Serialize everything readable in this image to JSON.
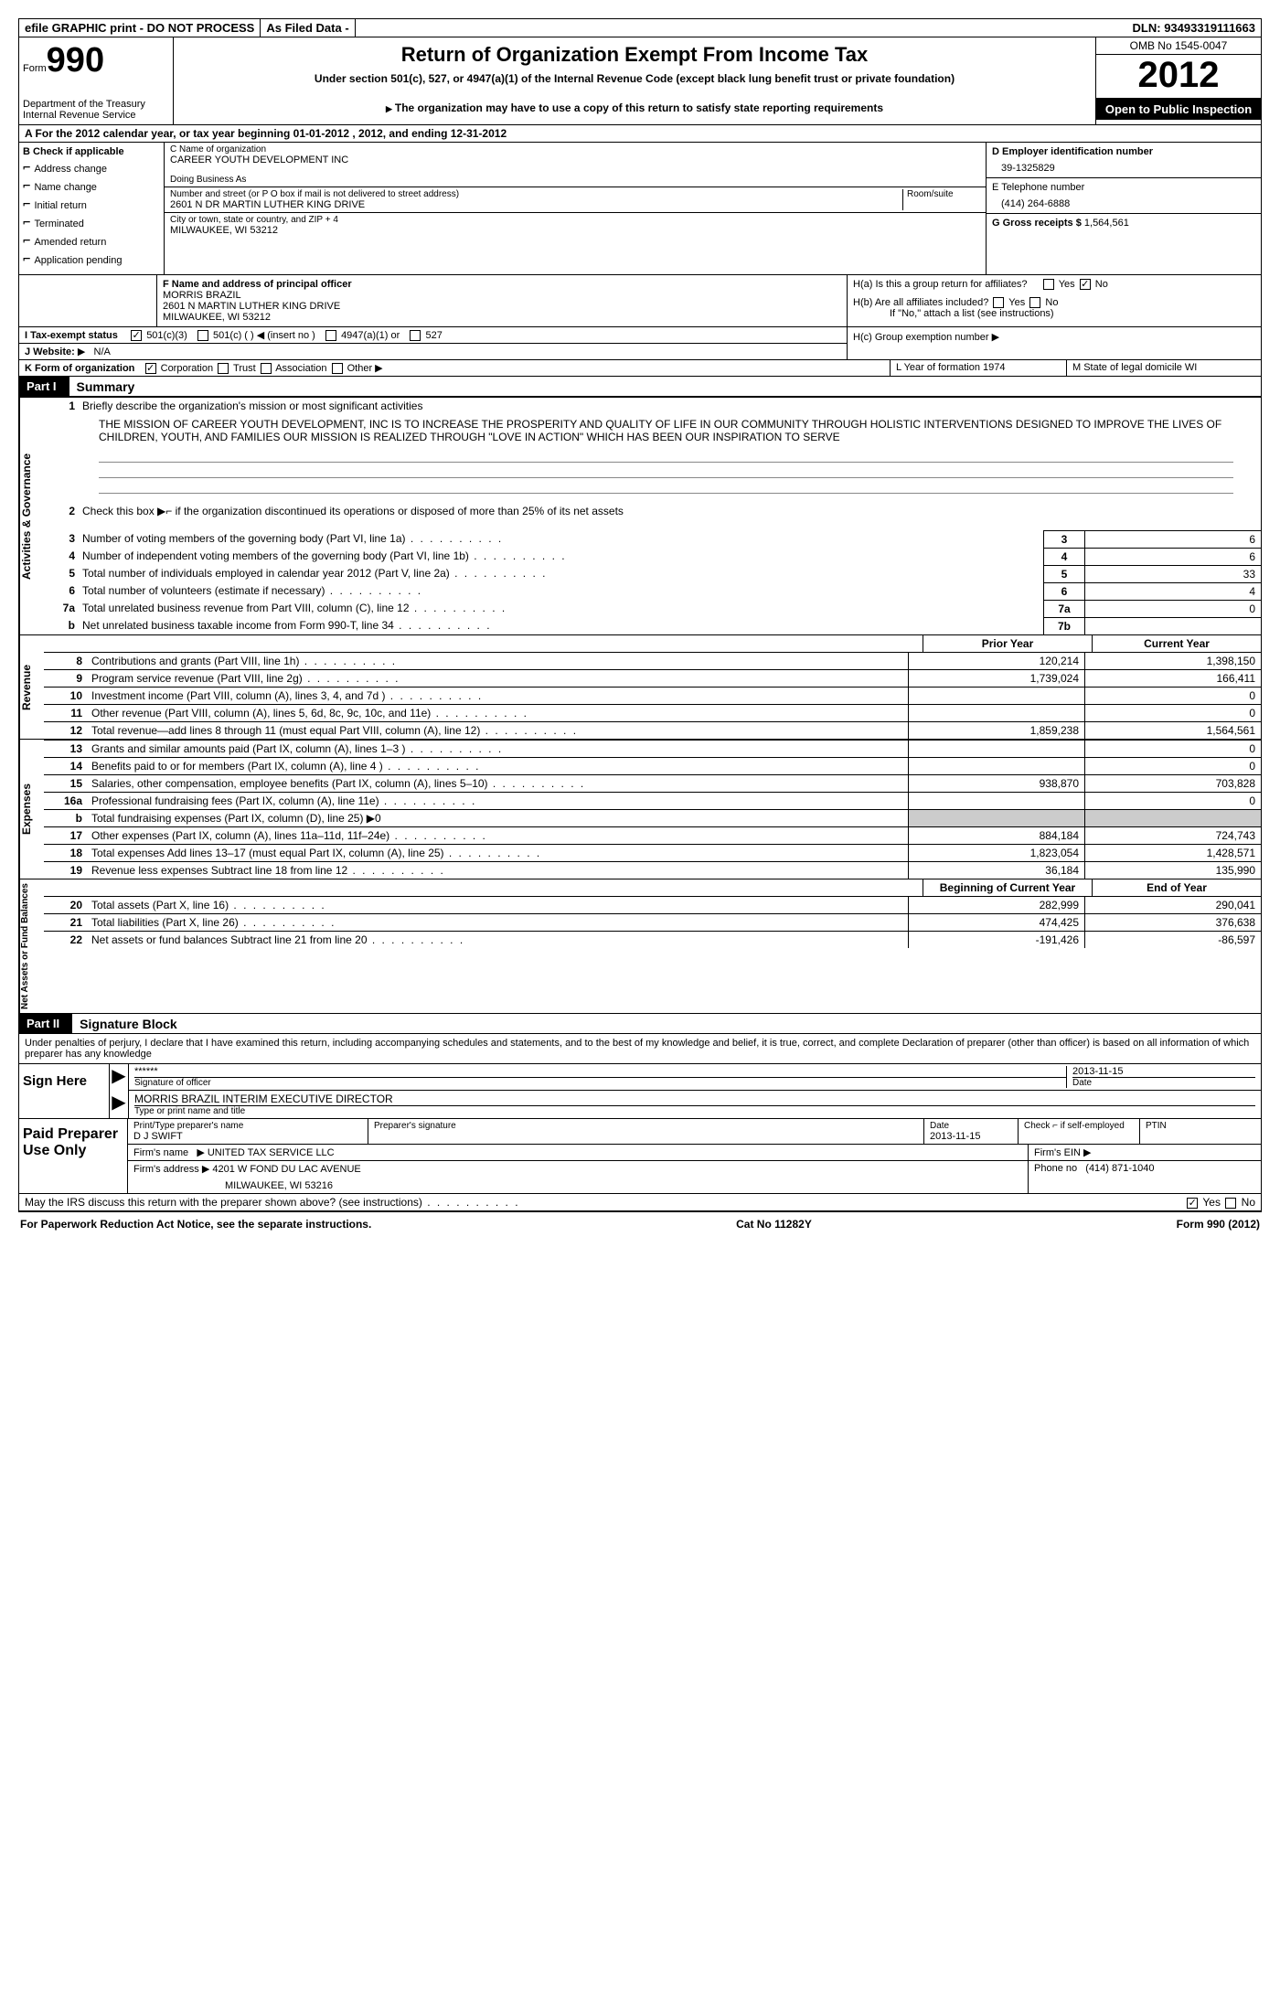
{
  "top": {
    "efile": "efile GRAPHIC print - DO NOT PROCESS",
    "filed": "As Filed Data -",
    "dln_label": "DLN:",
    "dln": "93493319111663"
  },
  "header": {
    "form_label": "Form",
    "form_num": "990",
    "dept1": "Department of the Treasury",
    "dept2": "Internal Revenue Service",
    "title": "Return of Organization Exempt From Income Tax",
    "sub": "Under section 501(c), 527, or 4947(a)(1) of the Internal Revenue Code (except black lung benefit trust or private foundation)",
    "note": "The organization may have to use a copy of this return to satisfy state reporting requirements",
    "omb": "OMB No  1545-0047",
    "year": "2012",
    "open": "Open to Public Inspection"
  },
  "section_a": "A  For the 2012 calendar year, or tax year beginning 01-01-2012     , 2012, and ending 12-31-2012",
  "b_label": "B  Check if applicable",
  "b_items": [
    "Address change",
    "Name change",
    "Initial return",
    "Terminated",
    "Amended return",
    "Application pending"
  ],
  "c": {
    "name_label": "C Name of organization",
    "name": "CAREER YOUTH DEVELOPMENT INC",
    "dba_label": "Doing Business As",
    "dba": "",
    "addr_label": "Number and street (or P O  box if mail is not delivered to street address)",
    "room_label": "Room/suite",
    "addr": "2601 N DR MARTIN LUTHER KING DRIVE",
    "city_label": "City or town, state or country, and ZIP + 4",
    "city": "MILWAUKEE, WI  53212"
  },
  "d": {
    "ein_label": "D Employer identification number",
    "ein": "39-1325829",
    "tel_label": "E Telephone number",
    "tel": "(414) 264-6888",
    "gross_label": "G Gross receipts $",
    "gross": "1,564,561"
  },
  "f": {
    "label": "F  Name and address of principal officer",
    "name": "MORRIS BRAZIL",
    "addr1": "2601 N MARTIN LUTHER KING DRIVE",
    "addr2": "MILWAUKEE, WI  53212"
  },
  "h": {
    "a": "H(a)  Is this a group return for affiliates?",
    "b": "H(b)  Are all affiliates included?",
    "b_note": "If \"No,\" attach a list  (see instructions)",
    "c": "H(c)  Group exemption number"
  },
  "i": "I  Tax-exempt status",
  "i_opts": [
    "501(c)(3)",
    "501(c) (  )",
    "(insert no )",
    "4947(a)(1) or",
    "527"
  ],
  "j": "J  Website:",
  "j_val": "N/A",
  "k": {
    "label": "K Form of organization",
    "opts": [
      "Corporation",
      "Trust",
      "Association",
      "Other"
    ],
    "l": "L Year of formation  1974",
    "m": "M State of legal domicile  WI"
  },
  "part1": {
    "label": "Part I",
    "title": "Summary"
  },
  "governance": {
    "side": "Activities & Governance",
    "l1": "Briefly describe the organization's mission or most significant activities",
    "mission": "THE MISSION OF CAREER YOUTH DEVELOPMENT, INC  IS TO INCREASE THE PROSPERITY AND QUALITY OF LIFE IN OUR COMMUNITY THROUGH HOLISTIC INTERVENTIONS DESIGNED TO IMPROVE THE LIVES OF CHILDREN, YOUTH, AND FAMILIES  OUR MISSION IS REALIZED THROUGH \"LOVE IN ACTION\" WHICH HAS BEEN OUR INSPIRATION TO SERVE",
    "l2": "Check this box ▶⌐  if the organization discontinued its operations or disposed of more than 25% of its net assets",
    "l3": {
      "t": "Number of voting members of the governing body (Part VI, line 1a)",
      "b": "3",
      "v": "6"
    },
    "l4": {
      "t": "Number of independent voting members of the governing body (Part VI, line 1b)",
      "b": "4",
      "v": "6"
    },
    "l5": {
      "t": "Total number of individuals employed in calendar year 2012 (Part V, line 2a)",
      "b": "5",
      "v": "33"
    },
    "l6": {
      "t": "Total number of volunteers (estimate if necessary)",
      "b": "6",
      "v": "4"
    },
    "l7a": {
      "t": "Total unrelated business revenue from Part VIII, column (C), line 12",
      "b": "7a",
      "v": "0"
    },
    "l7b": {
      "t": "Net unrelated business taxable income from Form 990-T, line 34",
      "b": "7b",
      "v": ""
    }
  },
  "col_headers": {
    "prior": "Prior Year",
    "current": "Current Year"
  },
  "revenue": {
    "side": "Revenue",
    "rows": [
      {
        "n": "8",
        "t": "Contributions and grants (Part VIII, line 1h)",
        "p": "120,214",
        "c": "1,398,150"
      },
      {
        "n": "9",
        "t": "Program service revenue (Part VIII, line 2g)",
        "p": "1,739,024",
        "c": "166,411"
      },
      {
        "n": "10",
        "t": "Investment income (Part VIII, column (A), lines 3, 4, and 7d )",
        "p": "",
        "c": "0"
      },
      {
        "n": "11",
        "t": "Other revenue (Part VIII, column (A), lines 5, 6d, 8c, 9c, 10c, and 11e)",
        "p": "",
        "c": "0"
      },
      {
        "n": "12",
        "t": "Total revenue—add lines 8 through 11 (must equal Part VIII, column (A), line 12)",
        "p": "1,859,238",
        "c": "1,564,561"
      }
    ]
  },
  "expenses": {
    "side": "Expenses",
    "rows": [
      {
        "n": "13",
        "t": "Grants and similar amounts paid (Part IX, column (A), lines 1–3 )",
        "p": "",
        "c": "0"
      },
      {
        "n": "14",
        "t": "Benefits paid to or for members (Part IX, column (A), line 4 )",
        "p": "",
        "c": "0"
      },
      {
        "n": "15",
        "t": "Salaries, other compensation, employee benefits (Part IX, column (A), lines 5–10)",
        "p": "938,870",
        "c": "703,828"
      },
      {
        "n": "16a",
        "t": "Professional fundraising fees (Part IX, column (A), line 11e)",
        "p": "",
        "c": "0"
      },
      {
        "n": "b",
        "t": "Total fundraising expenses (Part IX, column (D), line 25) ▶0",
        "p": "shade",
        "c": "shade"
      },
      {
        "n": "17",
        "t": "Other expenses (Part IX, column (A), lines 11a–11d, 11f–24e)",
        "p": "884,184",
        "c": "724,743"
      },
      {
        "n": "18",
        "t": "Total expenses  Add lines 13–17 (must equal Part IX, column (A), line 25)",
        "p": "1,823,054",
        "c": "1,428,571"
      },
      {
        "n": "19",
        "t": "Revenue less expenses  Subtract line 18 from line 12",
        "p": "36,184",
        "c": "135,990"
      }
    ]
  },
  "net_headers": {
    "begin": "Beginning of Current Year",
    "end": "End of Year"
  },
  "net": {
    "side": "Net Assets or Fund Balances",
    "rows": [
      {
        "n": "20",
        "t": "Total assets (Part X, line 16)",
        "p": "282,999",
        "c": "290,041"
      },
      {
        "n": "21",
        "t": "Total liabilities (Part X, line 26)",
        "p": "474,425",
        "c": "376,638"
      },
      {
        "n": "22",
        "t": "Net assets or fund balances  Subtract line 21 from line 20",
        "p": "-191,426",
        "c": "-86,597"
      }
    ]
  },
  "part2": {
    "label": "Part II",
    "title": "Signature Block"
  },
  "sig": {
    "perjury": "Under penalties of perjury, I declare that I have examined this return, including accompanying schedules and statements, and to the best of my knowledge and belief, it is true, correct, and complete  Declaration of preparer (other than officer) is based on all information of which preparer has any knowledge",
    "sign_here": "Sign Here",
    "stars": "******",
    "sig_officer": "Signature of officer",
    "date": "2013-11-15",
    "date_label": "Date",
    "name": "MORRIS BRAZIL INTERIM EXECUTIVE DIRECTOR",
    "name_label": "Type or print name and title"
  },
  "prep": {
    "label": "Paid Preparer Use Only",
    "name_label": "Print/Type preparer's name",
    "name": "D J SWIFT",
    "sig_label": "Preparer's signature",
    "date_label": "Date",
    "date": "2013-11-15",
    "check_label": "Check ⌐  if self-employed",
    "ptin_label": "PTIN",
    "firm_label": "Firm's name",
    "firm": "UNITED TAX SERVICE LLC",
    "ein_label": "Firm's EIN",
    "addr_label": "Firm's address",
    "addr1": "4201 W FOND DU LAC AVENUE",
    "addr2": "MILWAUKEE, WI  53216",
    "phone_label": "Phone no",
    "phone": "(414) 871-1040"
  },
  "discuss": "May the IRS discuss this return with the preparer shown above? (see instructions)",
  "footer": {
    "left": "For Paperwork Reduction Act Notice, see the separate instructions.",
    "center": "Cat No  11282Y",
    "right": "Form 990 (2012)"
  }
}
